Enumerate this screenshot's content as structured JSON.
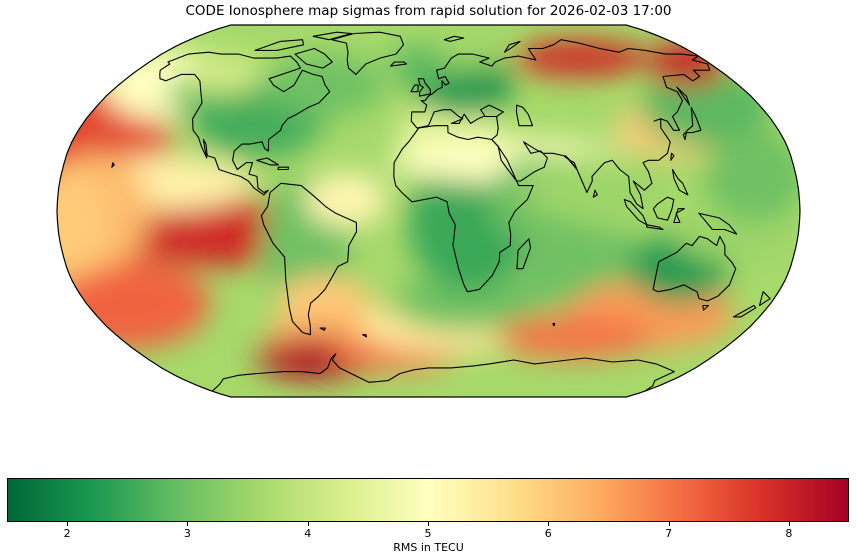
{
  "title": "CODE Ionosphere map sigmas from rapid solution for 2026-02-03 17:00",
  "projection": "robinson",
  "colormap": {
    "name": "RdYlGn_r",
    "stops": [
      "#006837",
      "#1a9850",
      "#66bd63",
      "#a6d96a",
      "#d9ef8b",
      "#ffffbf",
      "#fee08b",
      "#fdae61",
      "#f46d43",
      "#d73027",
      "#a50026"
    ]
  },
  "colorbar": {
    "label": "RMS in TECU",
    "min": 1.5,
    "max": 8.5,
    "ticks": [
      "2",
      "3",
      "4",
      "5",
      "6",
      "7",
      "8"
    ]
  }
}
